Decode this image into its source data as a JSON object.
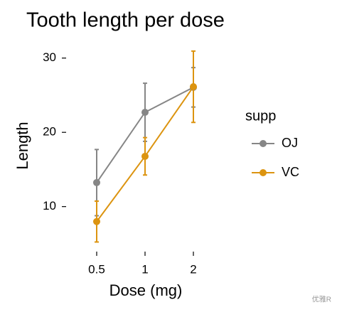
{
  "chart_data": {
    "type": "line",
    "title": "Tooth length per dose",
    "x_label": "Dose (mg)",
    "y_label": "Length",
    "categories": [
      "0.5",
      "1",
      "2"
    ],
    "series": [
      {
        "name": "OJ",
        "color": "#868686",
        "values": [
          13.23,
          22.7,
          26.06
        ],
        "errors": [
          4.46,
          3.91,
          2.66
        ]
      },
      {
        "name": "VC",
        "color": "#DC9410",
        "values": [
          7.98,
          16.77,
          26.14
        ],
        "errors": [
          2.75,
          2.52,
          4.8
        ]
      }
    ],
    "ylim": [
      4.8,
      31.6
    ],
    "yticks": [
      10,
      20,
      30
    ],
    "legend_title": "supp",
    "legend_position": "right",
    "watermark": "优雅R"
  }
}
